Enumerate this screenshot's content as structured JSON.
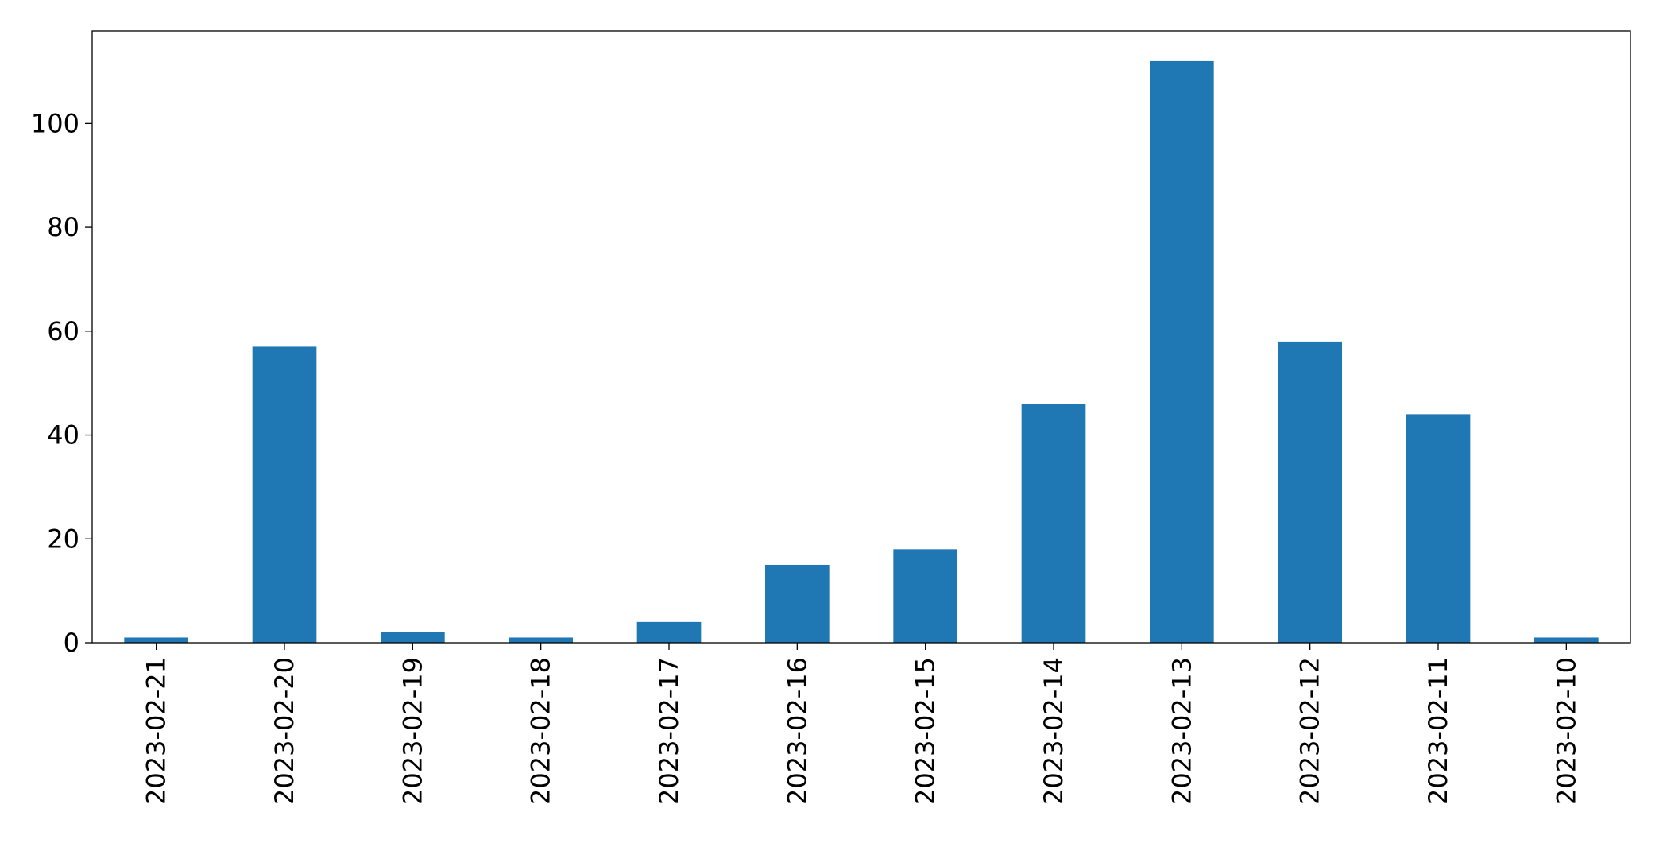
{
  "chart_data": {
    "type": "bar",
    "categories": [
      "2023-02-21",
      "2023-02-20",
      "2023-02-19",
      "2023-02-18",
      "2023-02-17",
      "2023-02-16",
      "2023-02-15",
      "2023-02-14",
      "2023-02-13",
      "2023-02-12",
      "2023-02-11",
      "2023-02-10"
    ],
    "values": [
      1,
      57,
      2,
      1,
      4,
      15,
      18,
      46,
      112,
      58,
      44,
      1
    ],
    "color": "#1f77b4",
    "ylim": [
      0,
      117.8
    ],
    "yticks": [
      0,
      20,
      40,
      60,
      80,
      100
    ],
    "grid": false
  }
}
